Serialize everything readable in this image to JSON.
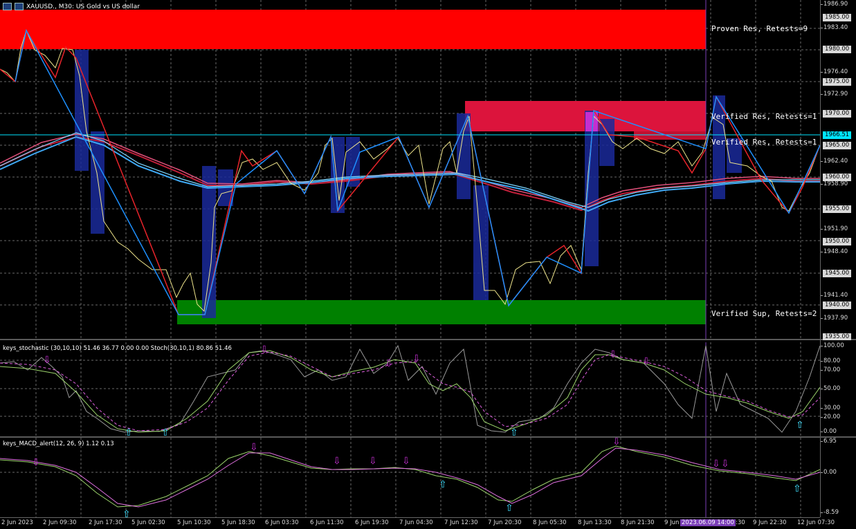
{
  "header": {
    "symbol_text": "XAUUSD., M30:  US Gold vs US dollar"
  },
  "zones": {
    "proven_res": "Proven Res, Retests=9",
    "verified_res_1": "Verified Res, Retests=1",
    "verified_res_2": "Verified Res, Retests=1",
    "verified_sup": "Verified Sup, Retests=2"
  },
  "price_axis": {
    "ticks": [
      "1986.90",
      "1985.00",
      "1983.40",
      "1980.00",
      "1976.40",
      "1975.00",
      "1972.90",
      "1970.00",
      "1965.00",
      "1962.40",
      "1960.00",
      "1958.90",
      "1955.00",
      "1951.90",
      "1950.00",
      "1948.40",
      "1945.00",
      "1941.40",
      "1940.00",
      "1937.90",
      "1935.00"
    ],
    "current_price": "1966.51",
    "current_price_color": "#00e5ff"
  },
  "stoch": {
    "title": "keys_stochastic (30,10,10) 51.46 36.77 0.00 0.00 Stoch(30,10,1) 80.86 51.46",
    "ticks": [
      "100.00",
      "80.00",
      "70.00",
      "50.00",
      "30.00",
      "20.00",
      "0.00"
    ]
  },
  "macd": {
    "title": "keys_MACD_alert(12, 26, 9) 1.12 0.13",
    "ticks": [
      "6.95",
      "0.00",
      "-8.59"
    ]
  },
  "time_axis": {
    "labels": [
      "2 Jun 2023",
      "2 Jun 09:30",
      "2 Jun 17:30",
      "5 Jun 02:30",
      "5 Jun 10:30",
      "5 Jun 18:30",
      "6 Jun 03:30",
      "6 Jun 11:30",
      "6 Jun 19:30",
      "7 Jun 04:30",
      "7 Jun 12:30",
      "7 Jun 20:30",
      "8 Jun 05:30",
      "8 Jun 13:30",
      "8 Jun 21:30",
      "9 Jun",
      "9 Jun 22:30",
      "12 Jun 07:30"
    ],
    "cursor_label": "2023.06.09 14:00",
    "cursor_suffix": ":30",
    "cursor_color": "#7b3fb8"
  },
  "colors": {
    "proven_res": "#ff0000",
    "verified_res": "#dc143c",
    "verified_sup": "#008000",
    "zigzag": "#e8232a",
    "zigzag_up": "#1e90ff",
    "ma_red": "#c21f3a",
    "ma_blue": "#3fa9f5"
  }
}
